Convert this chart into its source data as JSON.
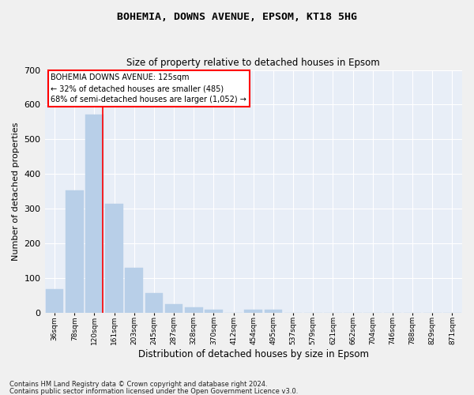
{
  "title": "BOHEMIA, DOWNS AVENUE, EPSOM, KT18 5HG",
  "subtitle": "Size of property relative to detached houses in Epsom",
  "xlabel": "Distribution of detached houses by size in Epsom",
  "ylabel": "Number of detached properties",
  "bar_color": "#b8cfe8",
  "bar_edge_color": "#b8cfe8",
  "background_color": "#e8eef7",
  "grid_color": "#ffffff",
  "fig_background": "#f0f0f0",
  "categories": [
    "36sqm",
    "78sqm",
    "120sqm",
    "161sqm",
    "203sqm",
    "245sqm",
    "287sqm",
    "328sqm",
    "370sqm",
    "412sqm",
    "454sqm",
    "495sqm",
    "537sqm",
    "579sqm",
    "621sqm",
    "662sqm",
    "704sqm",
    "746sqm",
    "788sqm",
    "829sqm",
    "871sqm"
  ],
  "values": [
    68,
    352,
    571,
    314,
    130,
    57,
    25,
    15,
    8,
    0,
    10,
    10,
    0,
    0,
    0,
    0,
    0,
    0,
    0,
    0,
    0
  ],
  "ylim": [
    0,
    700
  ],
  "yticks": [
    0,
    100,
    200,
    300,
    400,
    500,
    600,
    700
  ],
  "annotation_text_line1": "BOHEMIA DOWNS AVENUE: 125sqm",
  "annotation_text_line2": "← 32% of detached houses are smaller (485)",
  "annotation_text_line3": "68% of semi-detached houses are larger (1,052) →",
  "redline_x": 2.42,
  "footnote1": "Contains HM Land Registry data © Crown copyright and database right 2024.",
  "footnote2": "Contains public sector information licensed under the Open Government Licence v3.0."
}
